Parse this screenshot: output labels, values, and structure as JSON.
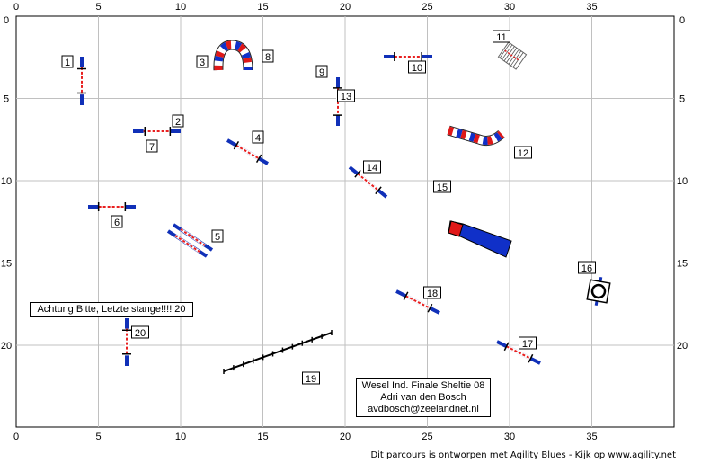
{
  "grid": {
    "x_labels": [
      "0",
      "5",
      "10",
      "15",
      "20",
      "25",
      "30",
      "35"
    ],
    "y_labels": [
      "0",
      "5",
      "10",
      "15",
      "20"
    ],
    "line_color": "#c0c0c0",
    "border_color": "#000000"
  },
  "colors": {
    "pole_red": "#e82020",
    "wing_blue": "#1030b8",
    "tunnel_red": "#e01818",
    "tunnel_blue": "#1030c8",
    "label_border": "#000000"
  },
  "obstacles": [
    {
      "number": "1",
      "type": "jump",
      "icon": "jump-icon"
    },
    {
      "number": "2",
      "type": "jump",
      "icon": "jump-icon"
    },
    {
      "number": "3",
      "type": "tunnel",
      "icon": "tunnel-icon"
    },
    {
      "number": "4",
      "type": "jump",
      "icon": "jump-icon"
    },
    {
      "number": "5",
      "type": "double-jump",
      "icon": "double-jump-icon"
    },
    {
      "number": "6",
      "type": "jump",
      "icon": "jump-icon"
    },
    {
      "number": "7",
      "type": "jump",
      "icon": "jump-icon"
    },
    {
      "number": "8",
      "type": "tunnel",
      "icon": "tunnel-icon"
    },
    {
      "number": "9",
      "type": "jump",
      "icon": "jump-icon"
    },
    {
      "number": "10",
      "type": "jump",
      "icon": "jump-icon"
    },
    {
      "number": "11",
      "type": "table",
      "icon": "table-icon"
    },
    {
      "number": "12",
      "type": "tunnel",
      "icon": "tunnel-icon"
    },
    {
      "number": "13",
      "type": "jump",
      "icon": "jump-icon"
    },
    {
      "number": "14",
      "type": "jump",
      "icon": "jump-icon"
    },
    {
      "number": "15",
      "type": "chute",
      "icon": "chute-icon"
    },
    {
      "number": "16",
      "type": "tyre",
      "icon": "tyre-icon"
    },
    {
      "number": "17",
      "type": "jump",
      "icon": "jump-icon"
    },
    {
      "number": "18",
      "type": "jump",
      "icon": "jump-icon"
    },
    {
      "number": "19",
      "type": "weave-poles",
      "icon": "weave-poles-icon"
    },
    {
      "number": "20",
      "type": "jump",
      "icon": "jump-icon"
    }
  ],
  "notes": {
    "warning": "Achtung Bitte, Letzte stange!!!!  20",
    "title_lines": [
      "Wesel Ind. Finale Sheltie 08",
      "Adri van den Bosch",
      "avdbosch@zeelandnet.nl"
    ],
    "footer": "Dit parcours is ontworpen met Agility Blues - Kijk op www.agility.net"
  }
}
